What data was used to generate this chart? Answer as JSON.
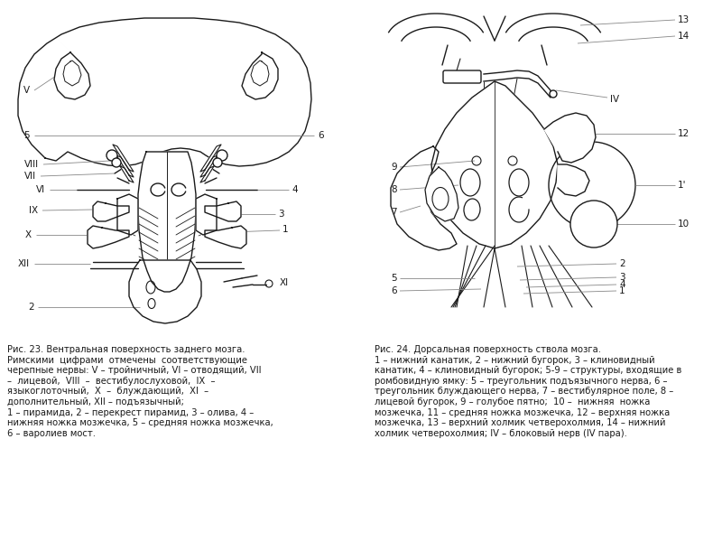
{
  "fig23_caption": "Рис. 23. Вентральная поверхность заднего мозга.\nРимскими  цифрами  отмечены  соответствующие\nчерепные нервы: V – тройничный, VI – отводящий, VII\n–  лицевой,  VIII  –  вестибулослуховой,  IX  –\nязыкоглоточный,  X  –  блуждающий,  XI  –\nдополнительный, XII – подъязычный;\n1 – пирамида, 2 – перекрест пирамид, 3 – олива, 4 –\nнижняя ножка мозжечка, 5 – средняя ножка мозжечка,\n6 – варолиев мост.",
  "fig24_caption": "Рис. 24. Дорсальная поверхность ствола мозга.\n1 – нижний канатик, 2 – нижний бугорок, 3 – клиновидный\nканатик, 4 – клиновидный бугорок; 5-9 – структуры, входящие в\nромбовидную ямку: 5 – треугольник подъязычного нерва, 6 –\nтреугольник блуждающего нерва, 7 – вестибулярное поле, 8 –\nлицевой бугорок, 9 – голубое пятно;  10 –  нижняя  ножка\nмозжечка, 11 – средняя ножка мозжечка, 12 – верхняя ножка\nмозжечка, 13 – верхний холмик четверохолмия, 14 – нижний\nхолмик четверохолмия; IV – блоковый нерв (IV пара).",
  "bg_color": "#ffffff",
  "line_color": "#1a1a1a",
  "label_color": "#1a1a1a",
  "ref_line_color": "#888888",
  "font_size": 7.2
}
